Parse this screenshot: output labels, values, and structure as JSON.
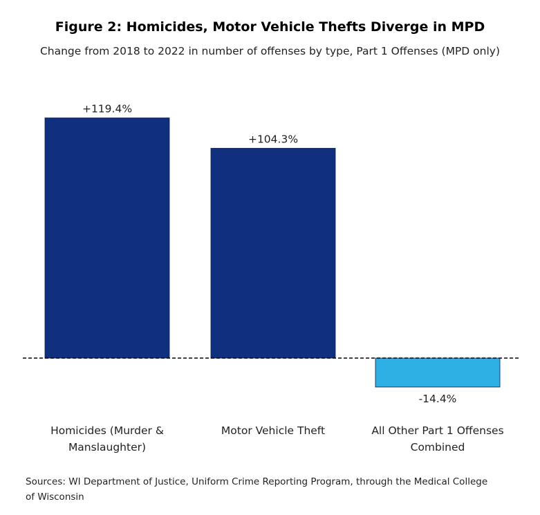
{
  "chart_data": {
    "type": "bar",
    "title": "Figure 2: Homicides, Motor Vehicle Thefts Diverge in MPD",
    "subtitle": "Change from 2018 to 2022 in number of offenses by type, Part 1 Offenses (MPD only)",
    "categories": [
      "Homicides (Murder & Manslaughter)",
      "Motor Vehicle Theft",
      "All Other Part 1 Offenses Combined"
    ],
    "values": [
      119.4,
      104.3,
      -14.4
    ],
    "value_labels": [
      "+119.4%",
      "+104.3%",
      "-14.4%"
    ],
    "colors": [
      "#10307f",
      "#10307f",
      "#2fb0e4"
    ],
    "unit": "%",
    "ylim": [
      -20,
      130
    ],
    "baseline": 0,
    "baseline_style": "dashed",
    "grid": false,
    "legend": "none",
    "xlabel": "",
    "ylabel": ""
  },
  "source": "Sources:  WI Department of Justice, Uniform Crime Reporting Program, through the Medical College of Wisconsin"
}
